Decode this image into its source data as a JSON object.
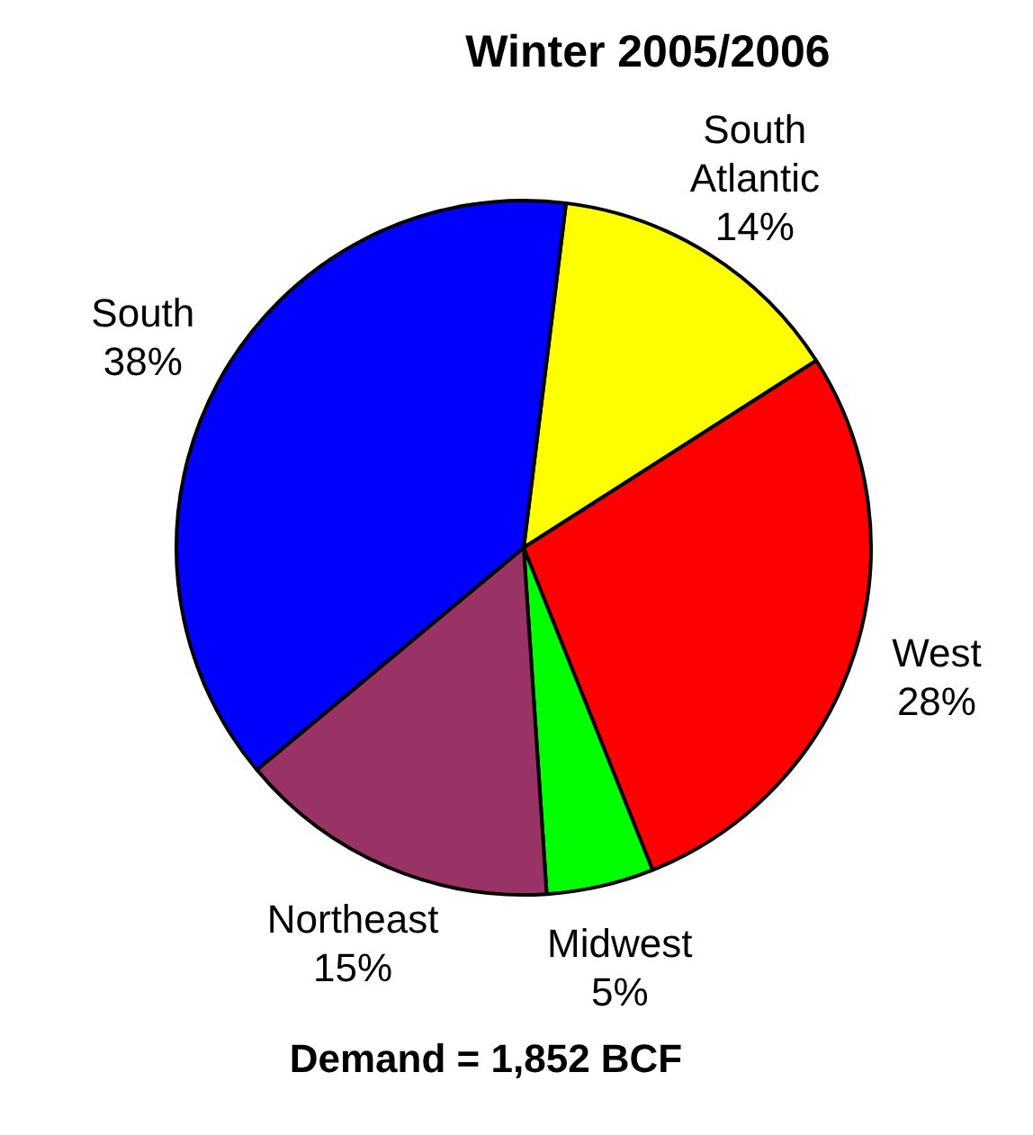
{
  "chart_data": {
    "type": "pie",
    "title": "Winter 2005/2006",
    "categories": [
      "South Atlantic",
      "West",
      "Midwest",
      "Northeast",
      "South"
    ],
    "values": [
      14,
      28,
      5,
      15,
      38
    ],
    "colors": [
      "#ffff00",
      "#ff0000",
      "#00ff00",
      "#993366",
      "#0000ff"
    ],
    "value_labels": [
      "14%",
      "28%",
      "5%",
      "15%",
      "38%"
    ],
    "legend": false,
    "annotations": [
      "Demand = 1,852 BCF"
    ]
  }
}
